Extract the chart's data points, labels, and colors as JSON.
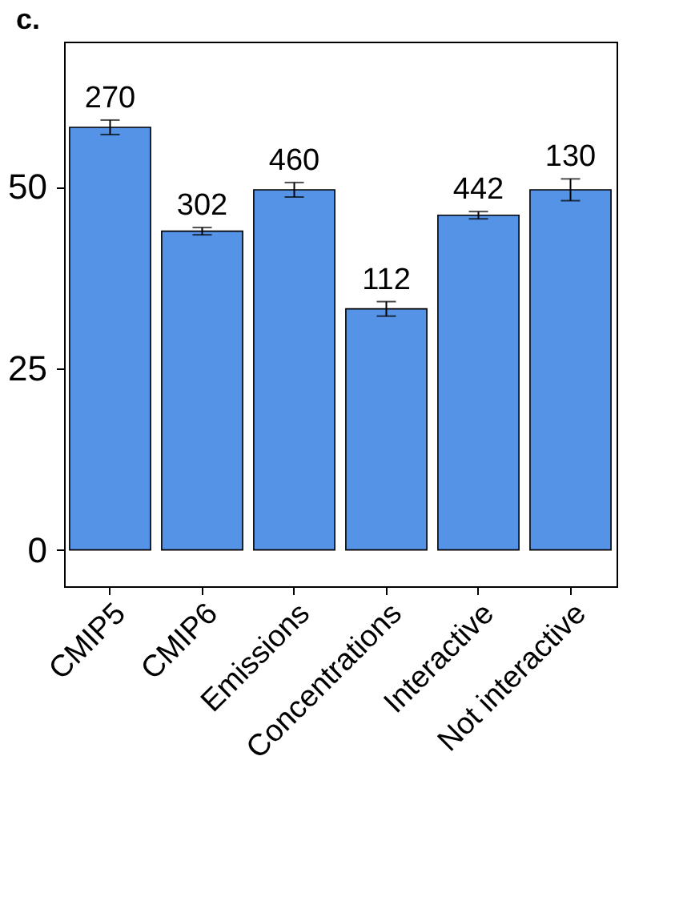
{
  "chart_data": {
    "type": "bar",
    "title": "c.",
    "categories": [
      "CMIP5",
      "CMIP6",
      "Emissions",
      "Concentrations",
      "Interactive",
      "Not interactive"
    ],
    "values": [
      58.2,
      43.9,
      49.6,
      33.2,
      46.1,
      49.6
    ],
    "errors": [
      1,
      0.5,
      1,
      1,
      0.5,
      1.5
    ],
    "color": "#5593e6",
    "ylim": [
      -5,
      70
    ],
    "yticks": [
      0,
      25,
      50
    ],
    "grid": false,
    "annotations": [
      {
        "text": "270",
        "x": "CMIP5",
        "y": 59.2
      },
      {
        "text": "302",
        "x": "CMIP6",
        "y": 44.4
      },
      {
        "text": "460",
        "x": "Emissions",
        "y": 50.6
      },
      {
        "text": "112",
        "x": "Concentrations",
        "y": 34.2
      },
      {
        "text": "442",
        "x": "Interactive",
        "y": 46.6
      },
      {
        "text": "130",
        "x": "Not interactive",
        "y": 51.1
      }
    ]
  }
}
